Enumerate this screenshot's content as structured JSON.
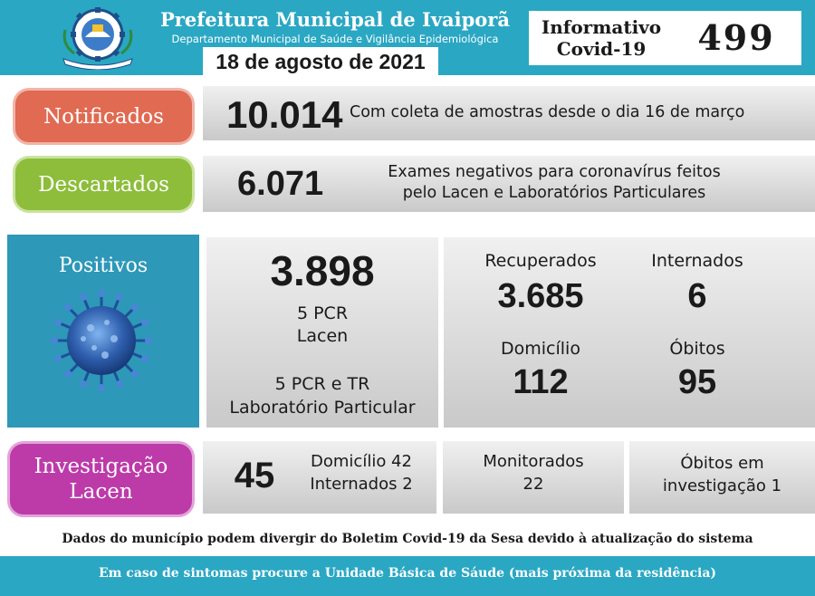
{
  "header": {
    "title": "Prefeitura Municipal de Ivaiporã",
    "subtitle": "Departamento Municipal de Saúde e Vigilância Epidemiológica",
    "date": "18 de agosto de 2021",
    "informativo_line1": "Informativo",
    "informativo_line2": "Covid-19",
    "informativo_number": "499",
    "seal_icon": "municipal-seal-icon"
  },
  "notificados": {
    "label": "Notificados",
    "value": "10.014",
    "description": "Com coleta de amostras desde o dia 16 de março"
  },
  "descartados": {
    "label": "Descartados",
    "value": "6.071",
    "description_line1": "Exames negativos para coronavírus feitos",
    "description_line2": "pelo Lacen e Laboratórios Particulares"
  },
  "positivos": {
    "label": "Positivos",
    "value": "3.898",
    "lacen_line1": "5 PCR",
    "lacen_line2": "Lacen",
    "particular_line1": "5 PCR e TR",
    "particular_line2": "Laboratório Particular",
    "icon": "coronavirus-icon"
  },
  "stats": {
    "recuperados_label": "Recuperados",
    "recuperados_value": "3.685",
    "internados_label": "Internados",
    "internados_value": "6",
    "domicilio_label": "Domicílio",
    "domicilio_value": "112",
    "obitos_label": "Óbitos",
    "obitos_value": "95"
  },
  "investigacao": {
    "label_line1": "Investigação",
    "label_line2": "Lacen",
    "value": "45",
    "domicilio": "Domicílio 42",
    "internados": "Internados 2",
    "monitorados_label": "Monitorados",
    "monitorados_value": "22",
    "obitos_line1": "Óbitos em",
    "obitos_line2": "investigação 1"
  },
  "disclaimer": "Dados do município podem divergir do Boletim Covid-19 da Sesa devido à atualização do sistema",
  "footer": "Em caso de sintomas procure a Unidade Básica de Sáude (mais próxima da residência)",
  "colors": {
    "header_blue": "#2aa7c3",
    "notificados": "#e06a52",
    "descartados": "#8dbd3b",
    "positivos": "#2d98b8",
    "investigacao": "#bd3aa9"
  }
}
